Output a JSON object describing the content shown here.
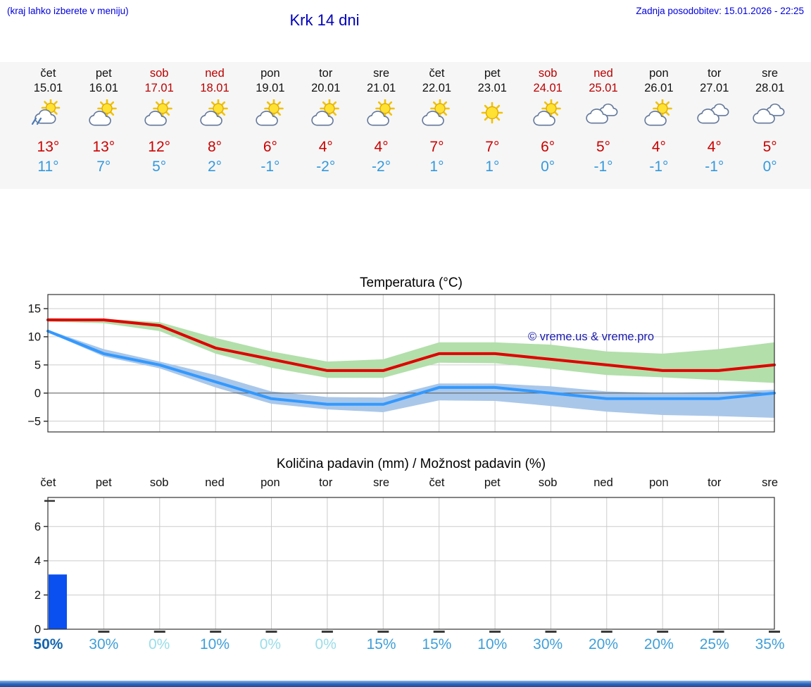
{
  "header": {
    "menu_hint": "(kraj lahko izberete v meniju)",
    "title": "Krk 14 dni",
    "last_update": "Zadnja posodobitev: 15.01.2026 - 22:25"
  },
  "forecast": {
    "days": [
      {
        "name": "čet",
        "date": "15.01",
        "icon": "sun-cloud-showers",
        "max": "13°",
        "min": "11°",
        "weekend": false
      },
      {
        "name": "pet",
        "date": "16.01",
        "icon": "sun-cloud",
        "max": "13°",
        "min": "7°",
        "weekend": false
      },
      {
        "name": "sob",
        "date": "17.01",
        "icon": "sun-cloud",
        "max": "12°",
        "min": "5°",
        "weekend": true
      },
      {
        "name": "ned",
        "date": "18.01",
        "icon": "sun-cloud",
        "max": "8°",
        "min": "2°",
        "weekend": true
      },
      {
        "name": "pon",
        "date": "19.01",
        "icon": "sun-cloud",
        "max": "6°",
        "min": "-1°",
        "weekend": false
      },
      {
        "name": "tor",
        "date": "20.01",
        "icon": "sun-cloud",
        "max": "4°",
        "min": "-2°",
        "weekend": false
      },
      {
        "name": "sre",
        "date": "21.01",
        "icon": "sun-cloud",
        "max": "4°",
        "min": "-2°",
        "weekend": false
      },
      {
        "name": "čet",
        "date": "22.01",
        "icon": "sun-cloud",
        "max": "7°",
        "min": "1°",
        "weekend": false
      },
      {
        "name": "pet",
        "date": "23.01",
        "icon": "sun",
        "max": "7°",
        "min": "1°",
        "weekend": false
      },
      {
        "name": "sob",
        "date": "24.01",
        "icon": "sun-cloud",
        "max": "6°",
        "min": "0°",
        "weekend": true
      },
      {
        "name": "ned",
        "date": "25.01",
        "icon": "cloudy",
        "max": "5°",
        "min": "-1°",
        "weekend": true
      },
      {
        "name": "pon",
        "date": "26.01",
        "icon": "sun-cloud",
        "max": "4°",
        "min": "-1°",
        "weekend": false
      },
      {
        "name": "tor",
        "date": "27.01",
        "icon": "cloudy",
        "max": "4°",
        "min": "-1°",
        "weekend": false
      },
      {
        "name": "sre",
        "date": "28.01",
        "icon": "cloudy",
        "max": "5°",
        "min": "0°",
        "weekend": false
      }
    ]
  },
  "chart_data": [
    {
      "type": "line",
      "title": "Temperatura (°C)",
      "watermark": "© vreme.us & vreme.pro",
      "x_labels": [
        "čet 15.01",
        "pet 16.01",
        "sob 17.01",
        "ned 18.01",
        "pon 19.01",
        "tor 20.01",
        "sre 21.01",
        "čet 22.01",
        "pet 23.01",
        "sob 24.01",
        "ned 25.01",
        "pon 26.01",
        "tor 27.01",
        "sre 28.01"
      ],
      "ylim": [
        -6.9,
        17.5
      ],
      "yticks": [
        -5,
        0,
        5,
        10,
        15
      ],
      "grid": true,
      "series": [
        {
          "name": "max temperature",
          "color": "#e00000",
          "values": [
            13,
            13,
            12,
            8,
            6,
            4,
            4,
            7,
            7,
            6,
            5,
            4,
            4,
            5
          ],
          "band_color": "#b2dfaa",
          "band_upper": [
            13.3,
            13.2,
            12.6,
            9.8,
            7.4,
            5.6,
            6.0,
            9.0,
            9.0,
            8.6,
            7.4,
            7.0,
            7.8,
            9.0
          ],
          "band_lower": [
            12.7,
            12.4,
            11.0,
            7.0,
            4.5,
            2.7,
            2.7,
            5.4,
            5.3,
            4.3,
            3.2,
            2.8,
            2.3,
            1.8
          ]
        },
        {
          "name": "min temperature",
          "color": "#3399ff",
          "values": [
            11,
            7,
            5,
            2,
            -1,
            -2,
            -2,
            1,
            1,
            0,
            -1,
            -1,
            -1,
            0
          ],
          "band_color": "#a9c7e9",
          "band_upper": [
            11.2,
            7.8,
            5.6,
            3.2,
            0.3,
            -0.7,
            -0.8,
            1.7,
            1.7,
            1.2,
            0.3,
            0.0,
            0.2,
            0.6
          ],
          "band_lower": [
            10.8,
            6.5,
            4.4,
            1.0,
            -1.9,
            -2.9,
            -3.4,
            -1.3,
            -1.4,
            -2.3,
            -3.3,
            -3.9,
            -4.1,
            -4.4
          ]
        }
      ]
    },
    {
      "type": "bar",
      "title": "Količina padavin (mm) / Možnost padavin (%)",
      "categories": [
        "čet",
        "pet",
        "sob",
        "ned",
        "pon",
        "tor",
        "sre",
        "čet",
        "pet",
        "sob",
        "ned",
        "pon",
        "tor",
        "sre"
      ],
      "values_mm": [
        3.2,
        0,
        0,
        0,
        0,
        0,
        0,
        0,
        0,
        0,
        0,
        0,
        0,
        0
      ],
      "probability_pct": [
        50,
        30,
        0,
        10,
        0,
        0,
        15,
        15,
        10,
        30,
        20,
        20,
        25,
        35
      ],
      "ylim": [
        0,
        7.7
      ],
      "yticks": [
        0,
        2,
        4,
        6
      ],
      "extra_tick": 7.5,
      "bar_color": "#0a50f0",
      "grid": true
    }
  ],
  "colors": {
    "link_blue": "#0000dd",
    "title_blue": "#0000bb",
    "weekend_red": "#bb0000",
    "max_temp_red": "#cc0000",
    "min_temp_blue": "#3399dd",
    "pct_high": "#1565ad",
    "pct_mid": "#3f9fd8",
    "pct_zero": "#9adde9",
    "watermark_blue": "#1a1aae",
    "strip_bg": "#f6f6f6",
    "footer_blue": "#2a62b8"
  }
}
